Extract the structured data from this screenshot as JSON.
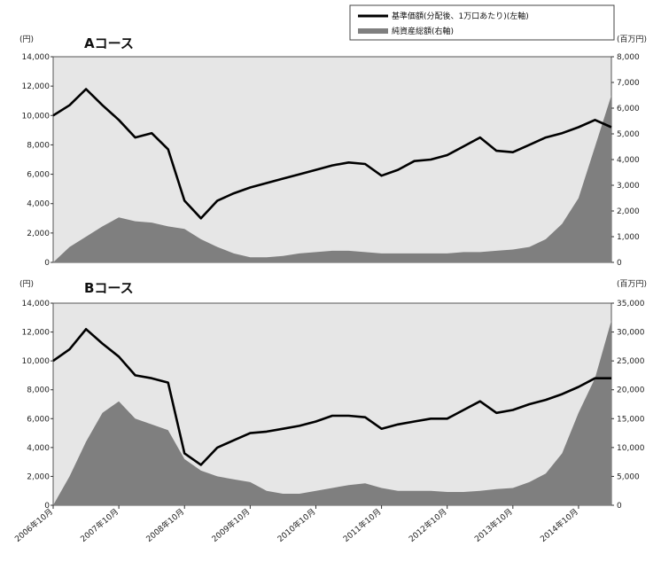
{
  "legend": {
    "items": [
      {
        "label": "基準価額(分配後、1万口あたり)(左軸)",
        "kind": "line",
        "color": "#000000"
      },
      {
        "label": "純資産総額(右軸)",
        "kind": "area",
        "color": "#7f7f7f"
      }
    ]
  },
  "colors": {
    "plot_bg": "#e6e6e6",
    "area": "#7f7f7f",
    "line": "#000000"
  },
  "x_ticks": [
    "2006年10月",
    "2007年10月",
    "2008年10月",
    "2009年10月",
    "2010年10月",
    "2011年10月",
    "2012年10月",
    "2013年10月",
    "2014年10月"
  ],
  "chart_data": [
    {
      "type": "line",
      "title": "Aコース",
      "left_unit": "(円)",
      "right_unit": "(百万円)",
      "x": [
        "2006-10",
        "2007-01",
        "2007-04",
        "2007-07",
        "2007-10",
        "2008-01",
        "2008-04",
        "2008-07",
        "2008-10",
        "2009-01",
        "2009-04",
        "2009-07",
        "2009-10",
        "2010-01",
        "2010-04",
        "2010-07",
        "2010-10",
        "2011-01",
        "2011-04",
        "2011-07",
        "2011-10",
        "2012-01",
        "2012-04",
        "2012-07",
        "2012-10",
        "2013-01",
        "2013-04",
        "2013-07",
        "2013-10",
        "2014-01",
        "2014-04",
        "2014-07",
        "2014-10",
        "2015-01",
        "2015-04"
      ],
      "series": [
        {
          "name": "基準価額(分配後、1万口あたり)(左軸)",
          "axis": "left",
          "values": [
            10000,
            10700,
            11800,
            10700,
            9700,
            8500,
            8800,
            7700,
            4200,
            3000,
            4200,
            4700,
            5100,
            5400,
            5700,
            6000,
            6300,
            6600,
            6800,
            6700,
            5900,
            6300,
            6900,
            7000,
            7300,
            7900,
            8500,
            7600,
            7500,
            8000,
            8500,
            8800,
            9200,
            9700,
            9200
          ]
        },
        {
          "name": "純資産総額(右軸)",
          "axis": "right",
          "values": [
            0,
            600,
            1000,
            1400,
            1750,
            1600,
            1550,
            1400,
            1300,
            900,
            600,
            350,
            200,
            200,
            250,
            350,
            400,
            450,
            450,
            400,
            350,
            350,
            350,
            350,
            350,
            400,
            400,
            450,
            500,
            600,
            900,
            1500,
            2500,
            4500,
            6500
          ]
        }
      ],
      "left_ylim": [
        0,
        14000
      ],
      "right_ylim": [
        0,
        8000
      ],
      "left_ticks": [
        "0",
        "2,000",
        "4,000",
        "6,000",
        "8,000",
        "10,000",
        "12,000",
        "14,000"
      ],
      "right_ticks": [
        "0",
        "1,000",
        "2,000",
        "3,000",
        "4,000",
        "5,000",
        "6,000",
        "7,000",
        "8,000"
      ],
      "grid": false,
      "legend_position": "top-right"
    },
    {
      "type": "line",
      "title": "Bコース",
      "left_unit": "(円)",
      "right_unit": "(百万円)",
      "x": [
        "2006-10",
        "2007-01",
        "2007-04",
        "2007-07",
        "2007-10",
        "2008-01",
        "2008-04",
        "2008-07",
        "2008-10",
        "2009-01",
        "2009-04",
        "2009-07",
        "2009-10",
        "2010-01",
        "2010-04",
        "2010-07",
        "2010-10",
        "2011-01",
        "2011-04",
        "2011-07",
        "2011-10",
        "2012-01",
        "2012-04",
        "2012-07",
        "2012-10",
        "2013-01",
        "2013-04",
        "2013-07",
        "2013-10",
        "2014-01",
        "2014-04",
        "2014-07",
        "2014-10",
        "2015-01",
        "2015-04"
      ],
      "series": [
        {
          "name": "基準価額(分配後、1万口あたり)(左軸)",
          "axis": "left",
          "values": [
            10000,
            10800,
            12200,
            11200,
            10300,
            9000,
            8800,
            8500,
            3600,
            2800,
            4000,
            4500,
            5000,
            5100,
            5300,
            5500,
            5800,
            6200,
            6200,
            6100,
            5300,
            5600,
            5800,
            6000,
            6000,
            6600,
            7200,
            6400,
            6600,
            7000,
            7300,
            7700,
            8200,
            8800,
            8800
          ]
        },
        {
          "name": "純資産総額(右軸)",
          "axis": "right",
          "values": [
            0,
            5000,
            11000,
            16000,
            18000,
            15000,
            14000,
            13000,
            8000,
            6000,
            5000,
            4500,
            4000,
            2500,
            2000,
            2000,
            2500,
            3000,
            3500,
            3800,
            3000,
            2500,
            2500,
            2500,
            2300,
            2300,
            2500,
            2800,
            3000,
            4000,
            5500,
            9000,
            16000,
            22000,
            32000
          ]
        }
      ],
      "left_ylim": [
        0,
        14000
      ],
      "right_ylim": [
        0,
        35000
      ],
      "left_ticks": [
        "0",
        "2,000",
        "4,000",
        "6,000",
        "8,000",
        "10,000",
        "12,000",
        "14,000"
      ],
      "right_ticks": [
        "0",
        "5,000",
        "10,000",
        "15,000",
        "20,000",
        "25,000",
        "30,000",
        "35,000"
      ],
      "grid": false,
      "legend_position": "top-right"
    }
  ]
}
